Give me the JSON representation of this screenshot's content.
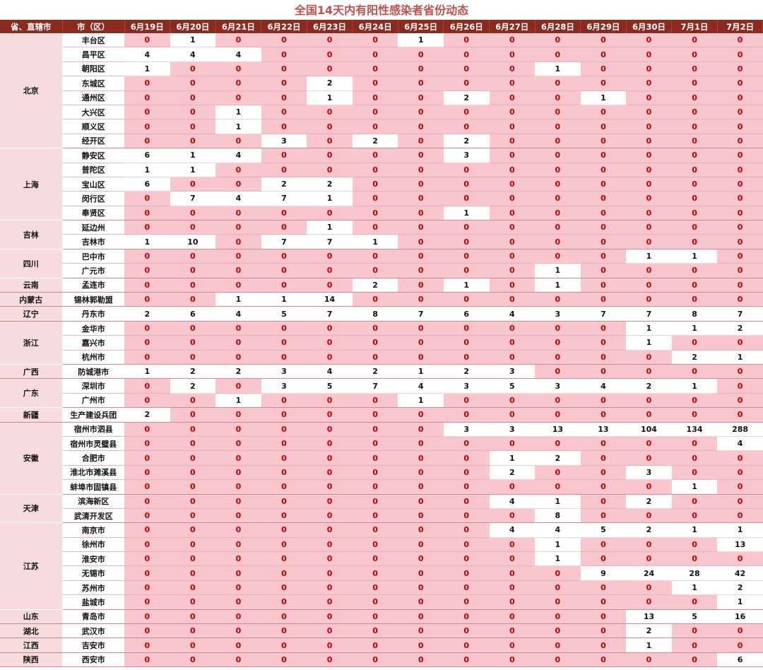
{
  "title": "全国14天内有阳性感染者省份动态",
  "headers": {
    "province": "省、直辖市",
    "city": "市（区）",
    "dates": [
      "6月19日",
      "6月20日",
      "6月21日",
      "6月22日",
      "6月23日",
      "6月24日",
      "6月25日",
      "6月26日",
      "6月27日",
      "6月28日",
      "6月29日",
      "6月30日",
      "7月1日",
      "7月2日"
    ]
  },
  "groups": [
    {
      "province": "北京",
      "rows": [
        {
          "city": "丰台区",
          "values": [
            0,
            1,
            0,
            0,
            0,
            0,
            1,
            0,
            0,
            0,
            0,
            0,
            0,
            0
          ]
        },
        {
          "city": "昌平区",
          "values": [
            4,
            4,
            4,
            0,
            0,
            0,
            0,
            0,
            0,
            0,
            0,
            0,
            0,
            0
          ]
        },
        {
          "city": "朝阳区",
          "values": [
            1,
            0,
            0,
            0,
            0,
            0,
            0,
            0,
            0,
            1,
            0,
            0,
            0,
            0
          ]
        },
        {
          "city": "东城区",
          "values": [
            0,
            0,
            0,
            0,
            2,
            0,
            0,
            0,
            0,
            0,
            0,
            0,
            0,
            0
          ]
        },
        {
          "city": "通州区",
          "values": [
            0,
            0,
            0,
            0,
            1,
            0,
            0,
            2,
            0,
            0,
            1,
            0,
            0,
            0
          ]
        },
        {
          "city": "大兴区",
          "values": [
            0,
            0,
            1,
            0,
            0,
            0,
            0,
            0,
            0,
            0,
            0,
            0,
            0,
            0
          ]
        },
        {
          "city": "顺义区",
          "values": [
            0,
            0,
            1,
            0,
            0,
            0,
            0,
            0,
            0,
            0,
            0,
            0,
            0,
            0
          ]
        },
        {
          "city": "经开区",
          "values": [
            0,
            0,
            0,
            3,
            0,
            2,
            0,
            2,
            0,
            0,
            0,
            0,
            0,
            0
          ]
        }
      ]
    },
    {
      "province": "上海",
      "rows": [
        {
          "city": "静安区",
          "values": [
            6,
            1,
            4,
            0,
            0,
            0,
            0,
            3,
            0,
            0,
            0,
            0,
            0,
            0
          ]
        },
        {
          "city": "普陀区",
          "values": [
            1,
            1,
            0,
            0,
            0,
            0,
            0,
            0,
            0,
            0,
            0,
            0,
            0,
            0
          ]
        },
        {
          "city": "宝山区",
          "values": [
            6,
            0,
            0,
            2,
            2,
            0,
            0,
            0,
            0,
            0,
            0,
            0,
            0,
            0
          ]
        },
        {
          "city": "闵行区",
          "values": [
            0,
            7,
            4,
            7,
            1,
            0,
            0,
            0,
            0,
            0,
            0,
            0,
            0,
            0
          ]
        },
        {
          "city": "奉贤区",
          "values": [
            0,
            0,
            0,
            0,
            0,
            0,
            0,
            1,
            0,
            0,
            0,
            0,
            0,
            0
          ]
        }
      ]
    },
    {
      "province": "吉林",
      "rows": [
        {
          "city": "延边州",
          "values": [
            0,
            0,
            0,
            0,
            1,
            0,
            0,
            0,
            0,
            0,
            0,
            0,
            0,
            0
          ]
        },
        {
          "city": "吉林市",
          "values": [
            1,
            10,
            0,
            7,
            7,
            1,
            0,
            0,
            0,
            0,
            0,
            0,
            0,
            0
          ]
        }
      ]
    },
    {
      "province": "四川",
      "rows": [
        {
          "city": "巴中市",
          "values": [
            0,
            0,
            0,
            0,
            0,
            0,
            0,
            0,
            0,
            0,
            0,
            1,
            1,
            0
          ]
        },
        {
          "city": "广元市",
          "values": [
            0,
            0,
            0,
            0,
            0,
            0,
            0,
            0,
            0,
            1,
            0,
            0,
            0,
            0
          ]
        }
      ]
    },
    {
      "province": "云南",
      "rows": [
        {
          "city": "孟连市",
          "values": [
            0,
            0,
            0,
            0,
            0,
            2,
            0,
            1,
            0,
            1,
            0,
            0,
            0,
            0
          ]
        }
      ]
    },
    {
      "province": "内蒙古",
      "rows": [
        {
          "city": "锡林郭勒盟",
          "values": [
            0,
            0,
            1,
            1,
            14,
            0,
            0,
            0,
            0,
            0,
            0,
            0,
            0,
            0
          ]
        }
      ]
    },
    {
      "province": "辽宁",
      "rows": [
        {
          "city": "丹东市",
          "values": [
            2,
            6,
            4,
            5,
            7,
            8,
            7,
            6,
            4,
            3,
            7,
            7,
            8,
            7
          ]
        }
      ]
    },
    {
      "province": "浙江",
      "rows": [
        {
          "city": "金华市",
          "values": [
            0,
            0,
            0,
            0,
            0,
            0,
            0,
            0,
            0,
            0,
            0,
            1,
            1,
            2
          ]
        },
        {
          "city": "嘉兴市",
          "values": [
            0,
            0,
            0,
            0,
            0,
            0,
            0,
            0,
            0,
            0,
            0,
            1,
            0,
            0
          ]
        },
        {
          "city": "杭州市",
          "values": [
            0,
            0,
            0,
            0,
            0,
            0,
            0,
            0,
            0,
            0,
            0,
            0,
            2,
            1
          ]
        }
      ]
    },
    {
      "province": "广西",
      "rows": [
        {
          "city": "防城港市",
          "values": [
            1,
            2,
            2,
            3,
            4,
            2,
            1,
            2,
            3,
            0,
            0,
            0,
            0,
            0
          ]
        }
      ]
    },
    {
      "province": "广东",
      "rows": [
        {
          "city": "深圳市",
          "values": [
            0,
            2,
            0,
            3,
            5,
            7,
            4,
            3,
            5,
            3,
            4,
            2,
            1,
            0
          ]
        },
        {
          "city": "广州市",
          "values": [
            0,
            0,
            1,
            0,
            0,
            0,
            1,
            0,
            0,
            0,
            0,
            0,
            0,
            0
          ]
        }
      ]
    },
    {
      "province": "新疆",
      "rows": [
        {
          "city": "生产建设兵团",
          "values": [
            2,
            0,
            0,
            0,
            0,
            0,
            0,
            0,
            0,
            0,
            0,
            0,
            0,
            0
          ]
        }
      ]
    },
    {
      "province": "安徽",
      "rows": [
        {
          "city": "宿州市泗县",
          "values": [
            0,
            0,
            0,
            0,
            0,
            0,
            0,
            3,
            3,
            13,
            13,
            104,
            134,
            288
          ]
        },
        {
          "city": "宿州市灵璧县",
          "values": [
            0,
            0,
            0,
            0,
            0,
            0,
            0,
            0,
            0,
            0,
            0,
            0,
            0,
            4
          ]
        },
        {
          "city": "合肥市",
          "values": [
            0,
            0,
            0,
            0,
            0,
            0,
            0,
            0,
            1,
            2,
            0,
            0,
            0,
            0
          ]
        },
        {
          "city": "淮北市濉溪县",
          "values": [
            0,
            0,
            0,
            0,
            0,
            0,
            0,
            0,
            2,
            0,
            0,
            3,
            0,
            0
          ]
        },
        {
          "city": "蚌埠市固镇县",
          "values": [
            0,
            0,
            0,
            0,
            0,
            0,
            0,
            0,
            0,
            0,
            0,
            0,
            1,
            0
          ]
        }
      ]
    },
    {
      "province": "天津",
      "rows": [
        {
          "city": "滨海新区",
          "values": [
            0,
            0,
            0,
            0,
            0,
            0,
            0,
            0,
            4,
            1,
            0,
            2,
            0,
            0
          ]
        },
        {
          "city": "武清开发区",
          "values": [
            0,
            0,
            0,
            0,
            0,
            0,
            0,
            0,
            0,
            8,
            0,
            0,
            0,
            0
          ]
        }
      ]
    },
    {
      "province": "江苏",
      "rows": [
        {
          "city": "南京市",
          "values": [
            0,
            0,
            0,
            0,
            0,
            0,
            0,
            0,
            4,
            4,
            5,
            2,
            1,
            1
          ]
        },
        {
          "city": "徐州市",
          "values": [
            0,
            0,
            0,
            0,
            0,
            0,
            0,
            0,
            0,
            1,
            0,
            0,
            0,
            13
          ]
        },
        {
          "city": "淮安市",
          "values": [
            0,
            0,
            0,
            0,
            0,
            0,
            0,
            0,
            0,
            1,
            0,
            0,
            0,
            0
          ]
        },
        {
          "city": "无锡市",
          "values": [
            0,
            0,
            0,
            0,
            0,
            0,
            0,
            0,
            0,
            0,
            9,
            24,
            28,
            42
          ]
        },
        {
          "city": "苏州市",
          "values": [
            0,
            0,
            0,
            0,
            0,
            0,
            0,
            0,
            0,
            0,
            0,
            0,
            1,
            2
          ]
        },
        {
          "city": "盐城市",
          "values": [
            0,
            0,
            0,
            0,
            0,
            0,
            0,
            0,
            0,
            0,
            0,
            0,
            0,
            1
          ]
        }
      ]
    },
    {
      "province": "山东",
      "rows": [
        {
          "city": "青岛市",
          "values": [
            0,
            0,
            0,
            0,
            0,
            0,
            0,
            0,
            0,
            0,
            0,
            13,
            5,
            16
          ]
        }
      ]
    },
    {
      "province": "湖北",
      "rows": [
        {
          "city": "武汉市",
          "values": [
            0,
            0,
            0,
            0,
            0,
            0,
            0,
            0,
            0,
            0,
            0,
            2,
            0,
            0
          ]
        }
      ]
    },
    {
      "province": "江西",
      "rows": [
        {
          "city": "吉安市",
          "values": [
            0,
            0,
            0,
            0,
            0,
            0,
            0,
            0,
            0,
            0,
            0,
            1,
            0,
            0
          ]
        }
      ]
    },
    {
      "province": "陕西",
      "rows": [
        {
          "city": "西安市",
          "values": [
            0,
            0,
            0,
            0,
            0,
            0,
            0,
            0,
            0,
            0,
            0,
            0,
            0,
            6
          ]
        }
      ]
    }
  ],
  "colors": {
    "header_bg": "#8b2a1e",
    "title": "#c0504d",
    "zero_cell_bg": "#f8c6cc",
    "zero_text": "#c00000",
    "positive_cell_bg": "#ffffff",
    "province_bg": "#f7dcdf"
  }
}
